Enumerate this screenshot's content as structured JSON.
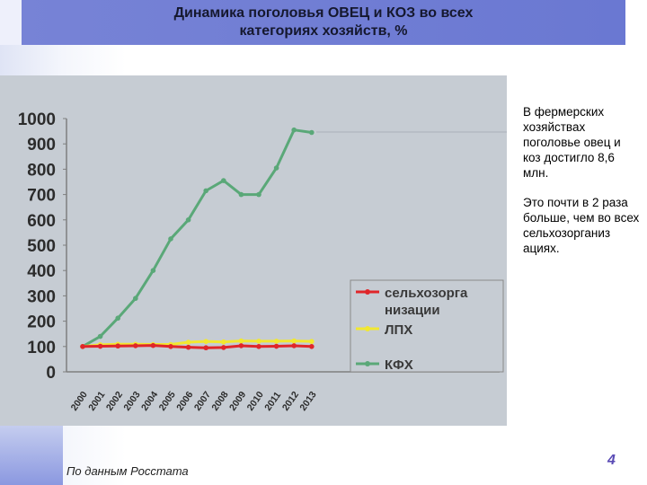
{
  "slide": {
    "title_line1": "Динамика поголовья ОВЕЦ и КОЗ во всех",
    "title_line2": "категориях хозяйств,  %",
    "side_paragraph1": "В фермерских хозяйствах поголовье овец и коз достигло 8,6 млн.",
    "side_paragraph2": "Это почти в 2 раза больше, чем во всех сельхозорганиз ациях.",
    "source": "По данным Росстата",
    "page_number": "4"
  },
  "colors": {
    "title_bar": "#6a78d2",
    "chart_bg": "#c6ccd3",
    "series_red": "#e0262a",
    "series_yellow": "#f2e830",
    "series_green": "#5aa878"
  },
  "chart_data": {
    "type": "line",
    "x": [
      "2000",
      "2001",
      "2002",
      "2003",
      "2004",
      "2005",
      "2006",
      "2007",
      "2008",
      "2009",
      "2010",
      "2011",
      "2012",
      "2013"
    ],
    "ylim": [
      0,
      1000
    ],
    "yticks": [
      "0",
      "100",
      "200",
      "300",
      "400",
      "500",
      "600",
      "700",
      "800",
      "900",
      "1000"
    ],
    "grid": false,
    "legend_position": "bottom-right",
    "series": [
      {
        "name": "сельхозорга низации",
        "legend_line1": "сельхозорга",
        "legend_line2": "низации",
        "color": "#e0262a",
        "values": [
          100,
          101,
          102,
          103,
          104,
          100,
          97,
          95,
          96,
          103,
          100,
          101,
          103,
          100
        ]
      },
      {
        "name": "ЛПХ",
        "legend_line1": "ЛПХ",
        "color": "#f2e830",
        "values": [
          100,
          107,
          109,
          109,
          108,
          108,
          117,
          120,
          118,
          122,
          121,
          121,
          122,
          120
        ]
      },
      {
        "name": "КФХ",
        "legend_line1": "КФХ",
        "color": "#5aa878",
        "values": [
          100,
          140,
          212,
          290,
          400,
          525,
          600,
          715,
          755,
          700,
          700,
          805,
          955,
          945
        ]
      }
    ]
  }
}
